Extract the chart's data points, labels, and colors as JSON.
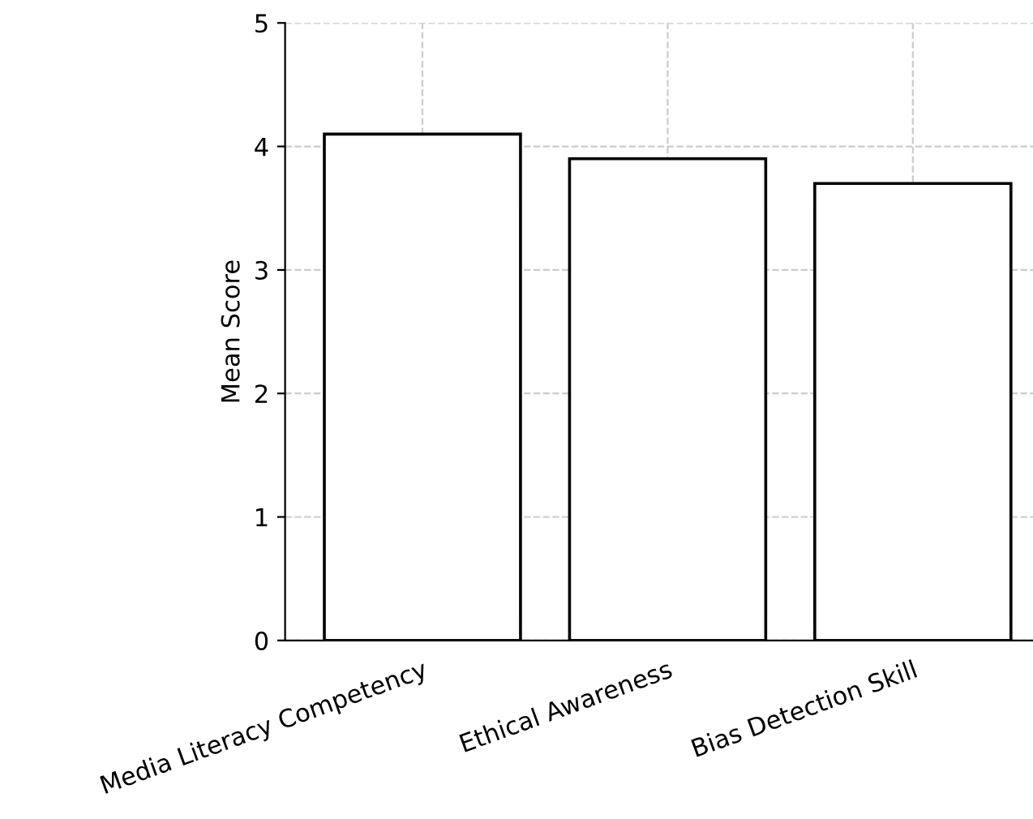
{
  "chart_data": {
    "type": "bar",
    "ylabel": "Mean Score",
    "categories": [
      "Media Literacy Competency",
      "Ethical Awareness",
      "Bias Detection Skill"
    ],
    "values": [
      4.1,
      3.9,
      3.7
    ],
    "color": "#ffffff",
    "ylim": [
      0,
      5
    ],
    "yticks": [
      0,
      1,
      2,
      3,
      4,
      5
    ],
    "grid": true
  }
}
